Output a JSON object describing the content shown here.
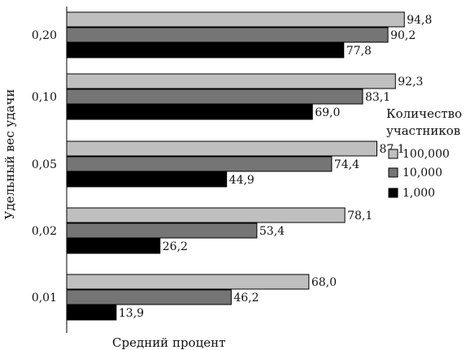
{
  "chart_data": {
    "type": "bar",
    "orientation": "horizontal",
    "categories": [
      "0,20",
      "0,10",
      "0,05",
      "0,02",
      "0,01"
    ],
    "series": [
      {
        "name": "100,000",
        "values": [
          94.8,
          92.3,
          87.1,
          78.1,
          68.0
        ],
        "labels": [
          "94,8",
          "92,3",
          "87,1",
          "78,1",
          "68,0"
        ],
        "color": "#bfbfbf"
      },
      {
        "name": "10,000",
        "values": [
          90.2,
          83.1,
          74.4,
          53.4,
          46.2
        ],
        "labels": [
          "90,2",
          "83,1",
          "74,4",
          "53,4",
          "46,2"
        ],
        "color": "#757575"
      },
      {
        "name": "1,000",
        "values": [
          77.8,
          69.0,
          44.9,
          26.2,
          13.9
        ],
        "labels": [
          "77,8",
          "69,0",
          "44,9",
          "26,2",
          "13,9"
        ],
        "color": "#000000"
      }
    ],
    "xlabel": "Средний процент",
    "ylabel": "Удельный вес удачи",
    "xlim": [
      0,
      100
    ],
    "grid": false,
    "legend": {
      "title_lines": [
        "Количество",
        "участников"
      ],
      "placement": "right"
    }
  }
}
